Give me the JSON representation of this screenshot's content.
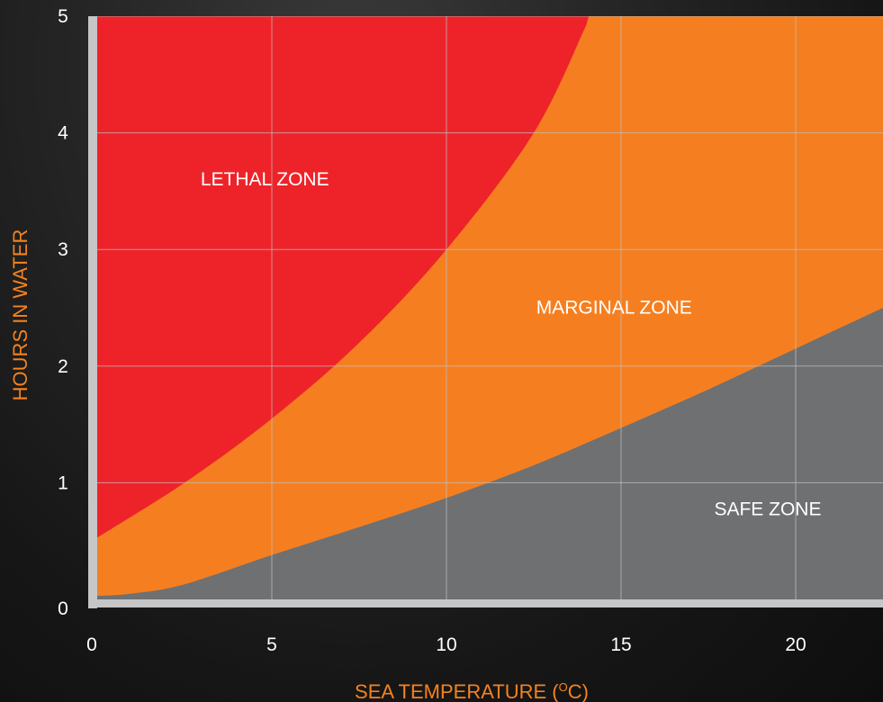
{
  "chart_data": {
    "type": "area",
    "title": "",
    "xlabel_main": "SEA TEMPERATURE (",
    "xlabel_sup": "O",
    "xlabel_end": "C)",
    "ylabel": "HOURS IN WATER",
    "xlim": [
      0,
      22.5
    ],
    "ylim": [
      0,
      5
    ],
    "x_ticks": [
      0,
      5,
      10,
      15,
      20
    ],
    "y_ticks": [
      0,
      1,
      2,
      3,
      4,
      5
    ],
    "grid": true,
    "boundaries": [
      {
        "name": "lethal_boundary",
        "points": [
          [
            0,
            0.53
          ],
          [
            2.5,
            1.0
          ],
          [
            5,
            1.55
          ],
          [
            7.5,
            2.2
          ],
          [
            10,
            3.0
          ],
          [
            12.5,
            4.0
          ],
          [
            14,
            4.92
          ]
        ]
      },
      {
        "name": "safe_boundary",
        "points": [
          [
            0,
            0.03
          ],
          [
            1,
            0.05
          ],
          [
            2.5,
            0.13
          ],
          [
            5,
            0.38
          ],
          [
            7.5,
            0.62
          ],
          [
            10,
            0.87
          ],
          [
            12.5,
            1.15
          ],
          [
            15,
            1.47
          ],
          [
            17.5,
            1.8
          ],
          [
            20,
            2.15
          ],
          [
            22.5,
            2.5
          ]
        ]
      }
    ],
    "zones": [
      {
        "label": "LETHAL ZONE",
        "color": "#ee232a",
        "label_x": 4.8,
        "label_y": 3.55
      },
      {
        "label": "MARGINAL ZONE",
        "color": "#f57f20",
        "label_x": 14.8,
        "label_y": 2.45
      },
      {
        "label": "SAFE ZONE",
        "color": "#6f7071",
        "label_x": 19.2,
        "label_y": 0.72
      }
    ],
    "colors": {
      "axis": "#c6c6c6",
      "grid": "#bdbdbd",
      "tick_text": "#ffffff",
      "axis_label": "#f58220",
      "zone_text": "#ffffff"
    }
  }
}
